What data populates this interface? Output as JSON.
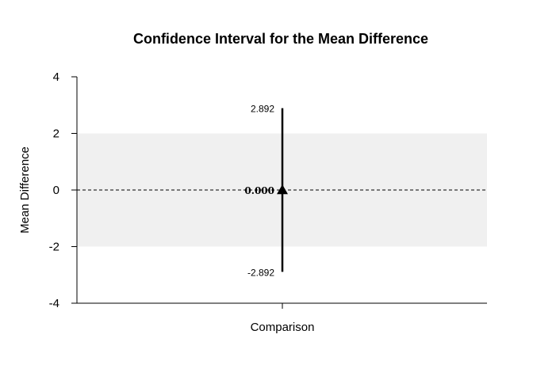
{
  "chart_data": {
    "type": "errorbar",
    "title": "Confidence Interval for the Mean Difference",
    "xlabel": "",
    "ylabel": "Mean Difference",
    "categories": [
      "Comparison"
    ],
    "ylim": [
      -4,
      4
    ],
    "yticks": [
      "-4",
      "-2",
      "0",
      "2",
      "4"
    ],
    "ytick_values": [
      -4,
      -2,
      0,
      2,
      4
    ],
    "estimate": 0.0,
    "lower": -2.892,
    "upper": 2.892,
    "estimate_label": "0.000",
    "lower_label": "-2.892",
    "upper_label": "2.892",
    "shaded_band": [
      -2,
      2
    ],
    "reference_line": 0,
    "band_color": "#f0f0f0",
    "line_color": "#000000"
  }
}
